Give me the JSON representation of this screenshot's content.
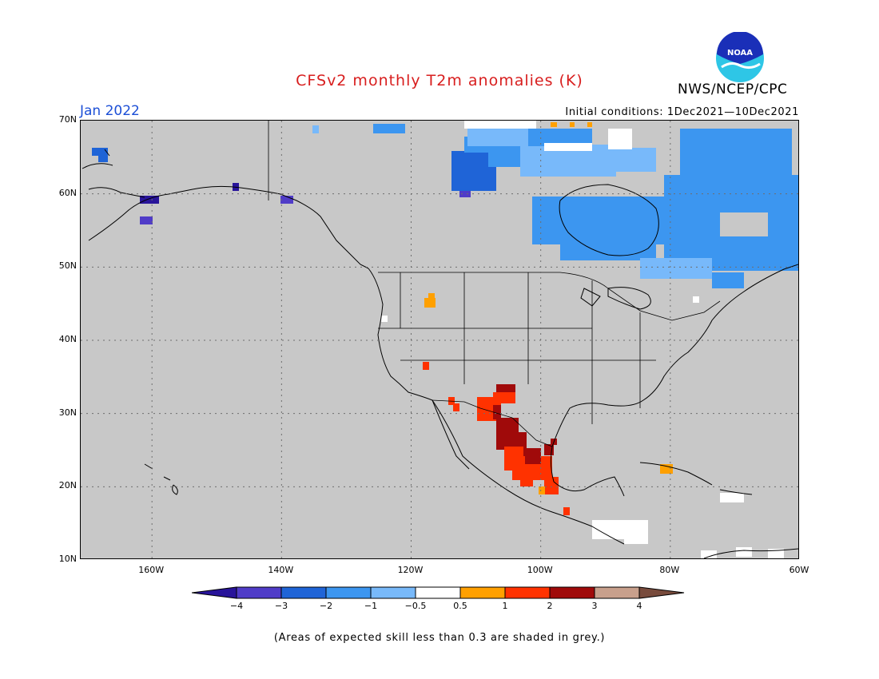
{
  "header": {
    "title": "CFSv2 monthly T2m anomalies (K)",
    "agency": "NWS/NCEP/CPC",
    "logo_text": "NOAA",
    "month": "Jan 2022",
    "initial_conditions": "Initial conditions: 1Dec2021—10Dec2021"
  },
  "map": {
    "lat_labels": [
      "70N",
      "60N",
      "50N",
      "40N",
      "30N",
      "20N",
      "10N"
    ],
    "lon_labels": [
      "160W",
      "140W",
      "120W",
      "100W",
      "80W",
      "60W"
    ],
    "extent": {
      "lon_min": -171,
      "lon_max": -60,
      "lat_min": 10,
      "lat_max": 70
    },
    "colors": {
      "background": "#c8c8c8",
      "coast": "#000000",
      "grid": "#6e6e6e"
    }
  },
  "colorbar": {
    "tick_labels": [
      "−4",
      "−3",
      "−2",
      "−1",
      "−0.5",
      "0.5",
      "1",
      "2",
      "3",
      "4"
    ],
    "bins": [
      {
        "label": "< -4",
        "color": "#28149a"
      },
      {
        "label": "-4 to -3",
        "color": "#503cc8"
      },
      {
        "label": "-3 to -2",
        "color": "#1f64d7"
      },
      {
        "label": "-2 to -1",
        "color": "#3c96f0"
      },
      {
        "label": "-1 to -0.5",
        "color": "#78b9fa"
      },
      {
        "label": "-0.5 to 0.5",
        "color": "#ffffff"
      },
      {
        "label": "0.5 to 1",
        "color": "#ffa000"
      },
      {
        "label": "1 to 2",
        "color": "#ff3200"
      },
      {
        "label": "2 to 3",
        "color": "#a00a0a"
      },
      {
        "label": "3 to 4",
        "color": "#c8a08c"
      },
      {
        "label": "> 4",
        "color": "#784b3c"
      }
    ]
  },
  "footer": {
    "note": "(Areas of expected skill less than 0.3 are shaded in grey.)"
  }
}
